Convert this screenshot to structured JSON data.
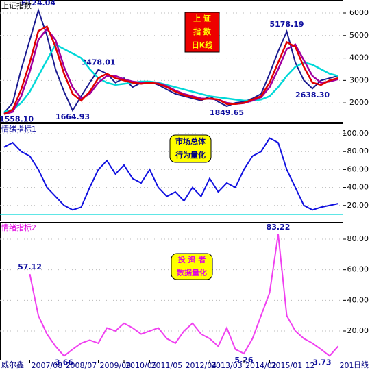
{
  "chart_data": [
    {
      "type": "line",
      "title": "上证指数",
      "title_color": "#000000",
      "badge": [
        "上 证",
        "指 数",
        "日K线"
      ],
      "badge_fill": "#ee0000",
      "badge_color": "#ffff00",
      "ylim": [
        1150,
        6580
      ],
      "yticks": [
        2000,
        3000,
        4000,
        5000,
        6000
      ],
      "series": [
        {
          "color": "#1a1a90",
          "values": [
            1558.1,
            2000,
            3500,
            4800,
            6124.04,
            5000,
            3500,
            2500,
            1664.93,
            2300,
            2900,
            3478.01,
            3300,
            2900,
            3100,
            2700,
            2900,
            2950,
            2800,
            2600,
            2400,
            2300,
            2200,
            2100,
            2300,
            2050,
            1849.65,
            2000,
            2050,
            2200,
            2400,
            3300,
            4300,
            5178.19,
            3800,
            3000,
            2638.3,
            3000,
            3100,
            3200
          ],
          "value_labels": [
            "1558.10",
            null,
            null,
            null,
            "6124.04",
            null,
            null,
            null,
            "1664.93",
            null,
            null,
            "3478.01",
            null,
            null,
            null,
            null,
            null,
            null,
            null,
            null,
            null,
            null,
            null,
            null,
            null,
            null,
            "1849.65",
            null,
            null,
            null,
            null,
            null,
            null,
            "5178.19",
            null,
            null,
            "2638.30",
            null,
            null,
            null
          ]
        },
        {
          "color": "#00d8d8",
          "values": [
            1600,
            1700,
            2000,
            2500,
            3200,
            3900,
            4600,
            4400,
            4200,
            4000,
            3500,
            3100,
            2900,
            2800,
            2850,
            2900,
            2950,
            2950,
            2900,
            2800,
            2700,
            2600,
            2500,
            2400,
            2300,
            2250,
            2200,
            2150,
            2100,
            2100,
            2150,
            2300,
            2700,
            3200,
            3600,
            3800,
            3700,
            3500,
            3300,
            3200
          ]
        },
        {
          "color": "#a000a0",
          "values": [
            1500,
            1600,
            2300,
            3400,
            4800,
            5300,
            4800,
            3600,
            2700,
            2200,
            2400,
            2900,
            3200,
            3200,
            3050,
            2950,
            2900,
            2880,
            2870,
            2750,
            2550,
            2400,
            2300,
            2200,
            2180,
            2150,
            2000,
            1950,
            1990,
            2100,
            2250,
            2700,
            3500,
            4400,
            4600,
            3900,
            3200,
            2900,
            2950,
            3050
          ]
        },
        {
          "color": "#e00000",
          "values": [
            1500,
            1700,
            2600,
            3800,
            5200,
            5400,
            4500,
            3300,
            2400,
            2100,
            2500,
            3100,
            3300,
            3100,
            3000,
            2900,
            2850,
            2900,
            2850,
            2700,
            2500,
            2350,
            2250,
            2150,
            2200,
            2150,
            1950,
            1950,
            2000,
            2150,
            2300,
            2900,
            3800,
            4700,
            4500,
            3600,
            2900,
            2800,
            3000,
            3100
          ]
        }
      ]
    },
    {
      "type": "line",
      "title": "情绪指标1",
      "title_color": "#1010a0",
      "badge": [
        "市场总体",
        "行为量化"
      ],
      "badge_fill": "#ffff00",
      "badge_color": "#000080",
      "ylim": [
        3,
        111.5
      ],
      "yticks": [
        {
          "value": 20,
          "label": "20.00"
        },
        {
          "value": 40,
          "label": "40.00"
        },
        {
          "value": 60,
          "label": "60.00"
        },
        {
          "value": 80,
          "label": "80.00"
        },
        {
          "value": 100,
          "label": "100.00"
        }
      ],
      "hlines": [
        {
          "value": 10,
          "color": "#00d8d8"
        }
      ],
      "series": [
        {
          "color": "#1010e0",
          "values": [
            85,
            90,
            80,
            75,
            60,
            40,
            30,
            20,
            15,
            18,
            40,
            60,
            70,
            55,
            65,
            50,
            45,
            60,
            40,
            30,
            35,
            25,
            40,
            30,
            50,
            35,
            45,
            40,
            60,
            75,
            80,
            95,
            90,
            60,
            40,
            20,
            15,
            18,
            20,
            22
          ]
        }
      ]
    },
    {
      "type": "line",
      "title": "情绪指标2",
      "title_color": "#e000e0",
      "badge": [
        "投 资 者",
        "数据量化"
      ],
      "badge_fill": "#ffff00",
      "badge_color": "#e000e0",
      "ylim": [
        1.2,
        91.2
      ],
      "yticks": [
        {
          "value": 20,
          "label": "20.00"
        },
        {
          "value": 40,
          "label": "40.00"
        },
        {
          "value": 60,
          "label": "60.00"
        },
        {
          "value": 80,
          "label": "80.00"
        }
      ],
      "categories": [
        null,
        null,
        null,
        "2007/08",
        null,
        null,
        null,
        "2008/07",
        null,
        null,
        null,
        "2009/08",
        null,
        null,
        "2010/05",
        null,
        null,
        "2011/05",
        null,
        null,
        null,
        "2012/04",
        null,
        null,
        "2013/03",
        null,
        null,
        null,
        "2014/02",
        null,
        null,
        "2015/01",
        null,
        null,
        null,
        "12",
        null,
        null,
        null,
        "201"
      ],
      "series": [
        {
          "color": "#f040f0",
          "values": [
            null,
            null,
            null,
            57.12,
            30,
            18,
            10,
            3.66,
            8,
            12,
            14,
            12,
            22,
            20,
            25,
            22,
            18,
            20,
            22,
            15,
            12,
            20,
            25,
            18,
            15,
            10,
            22,
            8,
            5.26,
            15,
            30,
            45,
            83.22,
            30,
            20,
            15,
            12,
            8,
            3.73,
            10
          ],
          "value_labels": [
            null,
            null,
            null,
            "57.12",
            null,
            null,
            null,
            "3.66",
            null,
            null,
            null,
            null,
            null,
            null,
            null,
            null,
            null,
            null,
            null,
            null,
            null,
            null,
            null,
            null,
            null,
            null,
            null,
            null,
            "5.26",
            null,
            null,
            null,
            "83.22",
            null,
            null,
            null,
            null,
            null,
            "3.73",
            null
          ]
        }
      ]
    }
  ],
  "footer": {
    "left": "威尔鑫",
    "right": "日线"
  }
}
